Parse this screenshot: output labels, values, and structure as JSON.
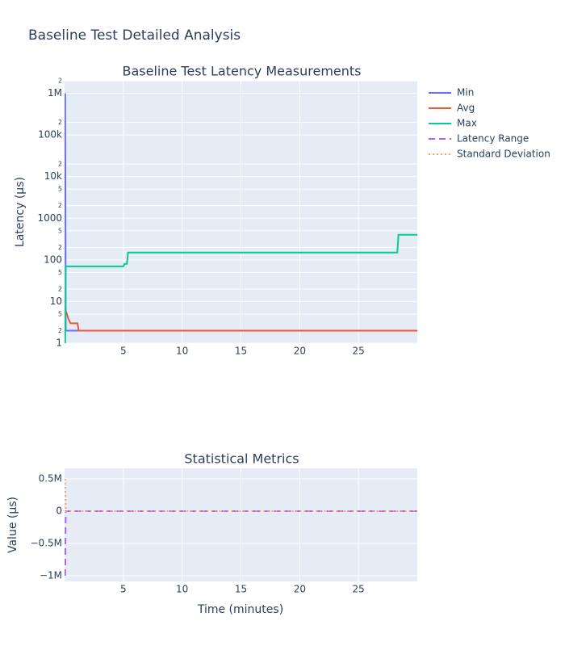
{
  "title": "Baseline Test Detailed Analysis",
  "x_label": "Time (minutes)",
  "chart_data": [
    {
      "type": "line",
      "title": "Baseline Test Latency Measurements",
      "y_label": "Latency (μs)",
      "log_y": true,
      "grid": true,
      "x": [
        0.05,
        0.1,
        0.2,
        0.3,
        0.5,
        0.8,
        1.1,
        1.2,
        5.0,
        5.1,
        5.3,
        5.4,
        28.3,
        28.4,
        30
      ],
      "series": [
        {
          "name": "Min",
          "color": "#636efa",
          "dash": "solid",
          "values": [
            1000000,
            2,
            2,
            2,
            2,
            2,
            2,
            2,
            2,
            2,
            2,
            2,
            2,
            2,
            2
          ]
        },
        {
          "name": "Avg",
          "color": "#ef553b",
          "dash": "solid",
          "values": [
            8,
            6,
            5,
            4,
            3,
            3,
            3,
            2,
            2,
            2,
            2,
            2,
            2,
            2,
            2
          ]
        },
        {
          "name": "Max",
          "color": "#00cc96",
          "dash": "solid",
          "values": [
            1,
            70,
            70,
            70,
            70,
            70,
            70,
            70,
            70,
            80,
            80,
            150,
            150,
            400,
            400
          ]
        }
      ],
      "xlim": [
        0,
        30
      ],
      "xticks": [
        5,
        10,
        15,
        20,
        25
      ],
      "ylim": [
        1,
        2000000
      ],
      "yticks": [
        1,
        2,
        5,
        10,
        {
          "value": 20,
          "label": "2"
        },
        {
          "value": 50,
          "label": "5"
        },
        100,
        {
          "value": 200,
          "label": "2"
        },
        {
          "value": 500,
          "label": "5"
        },
        1000,
        {
          "value": 2000,
          "label": "2"
        },
        {
          "value": 5000,
          "label": "5"
        },
        {
          "value": 10000,
          "label": "10k"
        },
        {
          "value": 20000,
          "label": "2"
        },
        {
          "value": 100000,
          "label": "100k"
        },
        {
          "value": 200000,
          "label": "2"
        },
        {
          "value": 1000000,
          "label": "1M"
        },
        {
          "value": 2000000,
          "label": "2"
        }
      ]
    },
    {
      "type": "line",
      "title": "Statistical Metrics",
      "y_label": "Value (μs)",
      "log_y": false,
      "grid": true,
      "x": [
        0.05,
        0.1,
        0.2,
        0.3,
        0.5,
        0.8,
        1.1,
        1.2,
        5.0,
        5.1,
        5.3,
        5.4,
        28.3,
        28.4,
        30
      ],
      "series": [
        {
          "name": "Latency Range",
          "color": "#ab63fa",
          "dash": "dash",
          "values": [
            -1000000,
            0,
            0,
            0,
            0,
            0,
            0,
            0,
            0,
            0,
            0,
            0,
            0,
            0,
            0
          ]
        },
        {
          "name": "Standard Deviation",
          "color": "#ffa15a",
          "dash": "dot",
          "values": [
            500000,
            0,
            0,
            0,
            0,
            0,
            0,
            0,
            0,
            0,
            0,
            0,
            0,
            0,
            0
          ]
        }
      ],
      "xlim": [
        0,
        30
      ],
      "xticks": [
        5,
        10,
        15,
        20,
        25
      ],
      "ylim": [
        -1087500,
        662500
      ],
      "yticks": [
        {
          "value": -1000000,
          "label": "−1M"
        },
        {
          "value": -500000,
          "label": "−0.5M"
        },
        0,
        {
          "value": 500000,
          "label": "0.5M"
        }
      ]
    }
  ]
}
